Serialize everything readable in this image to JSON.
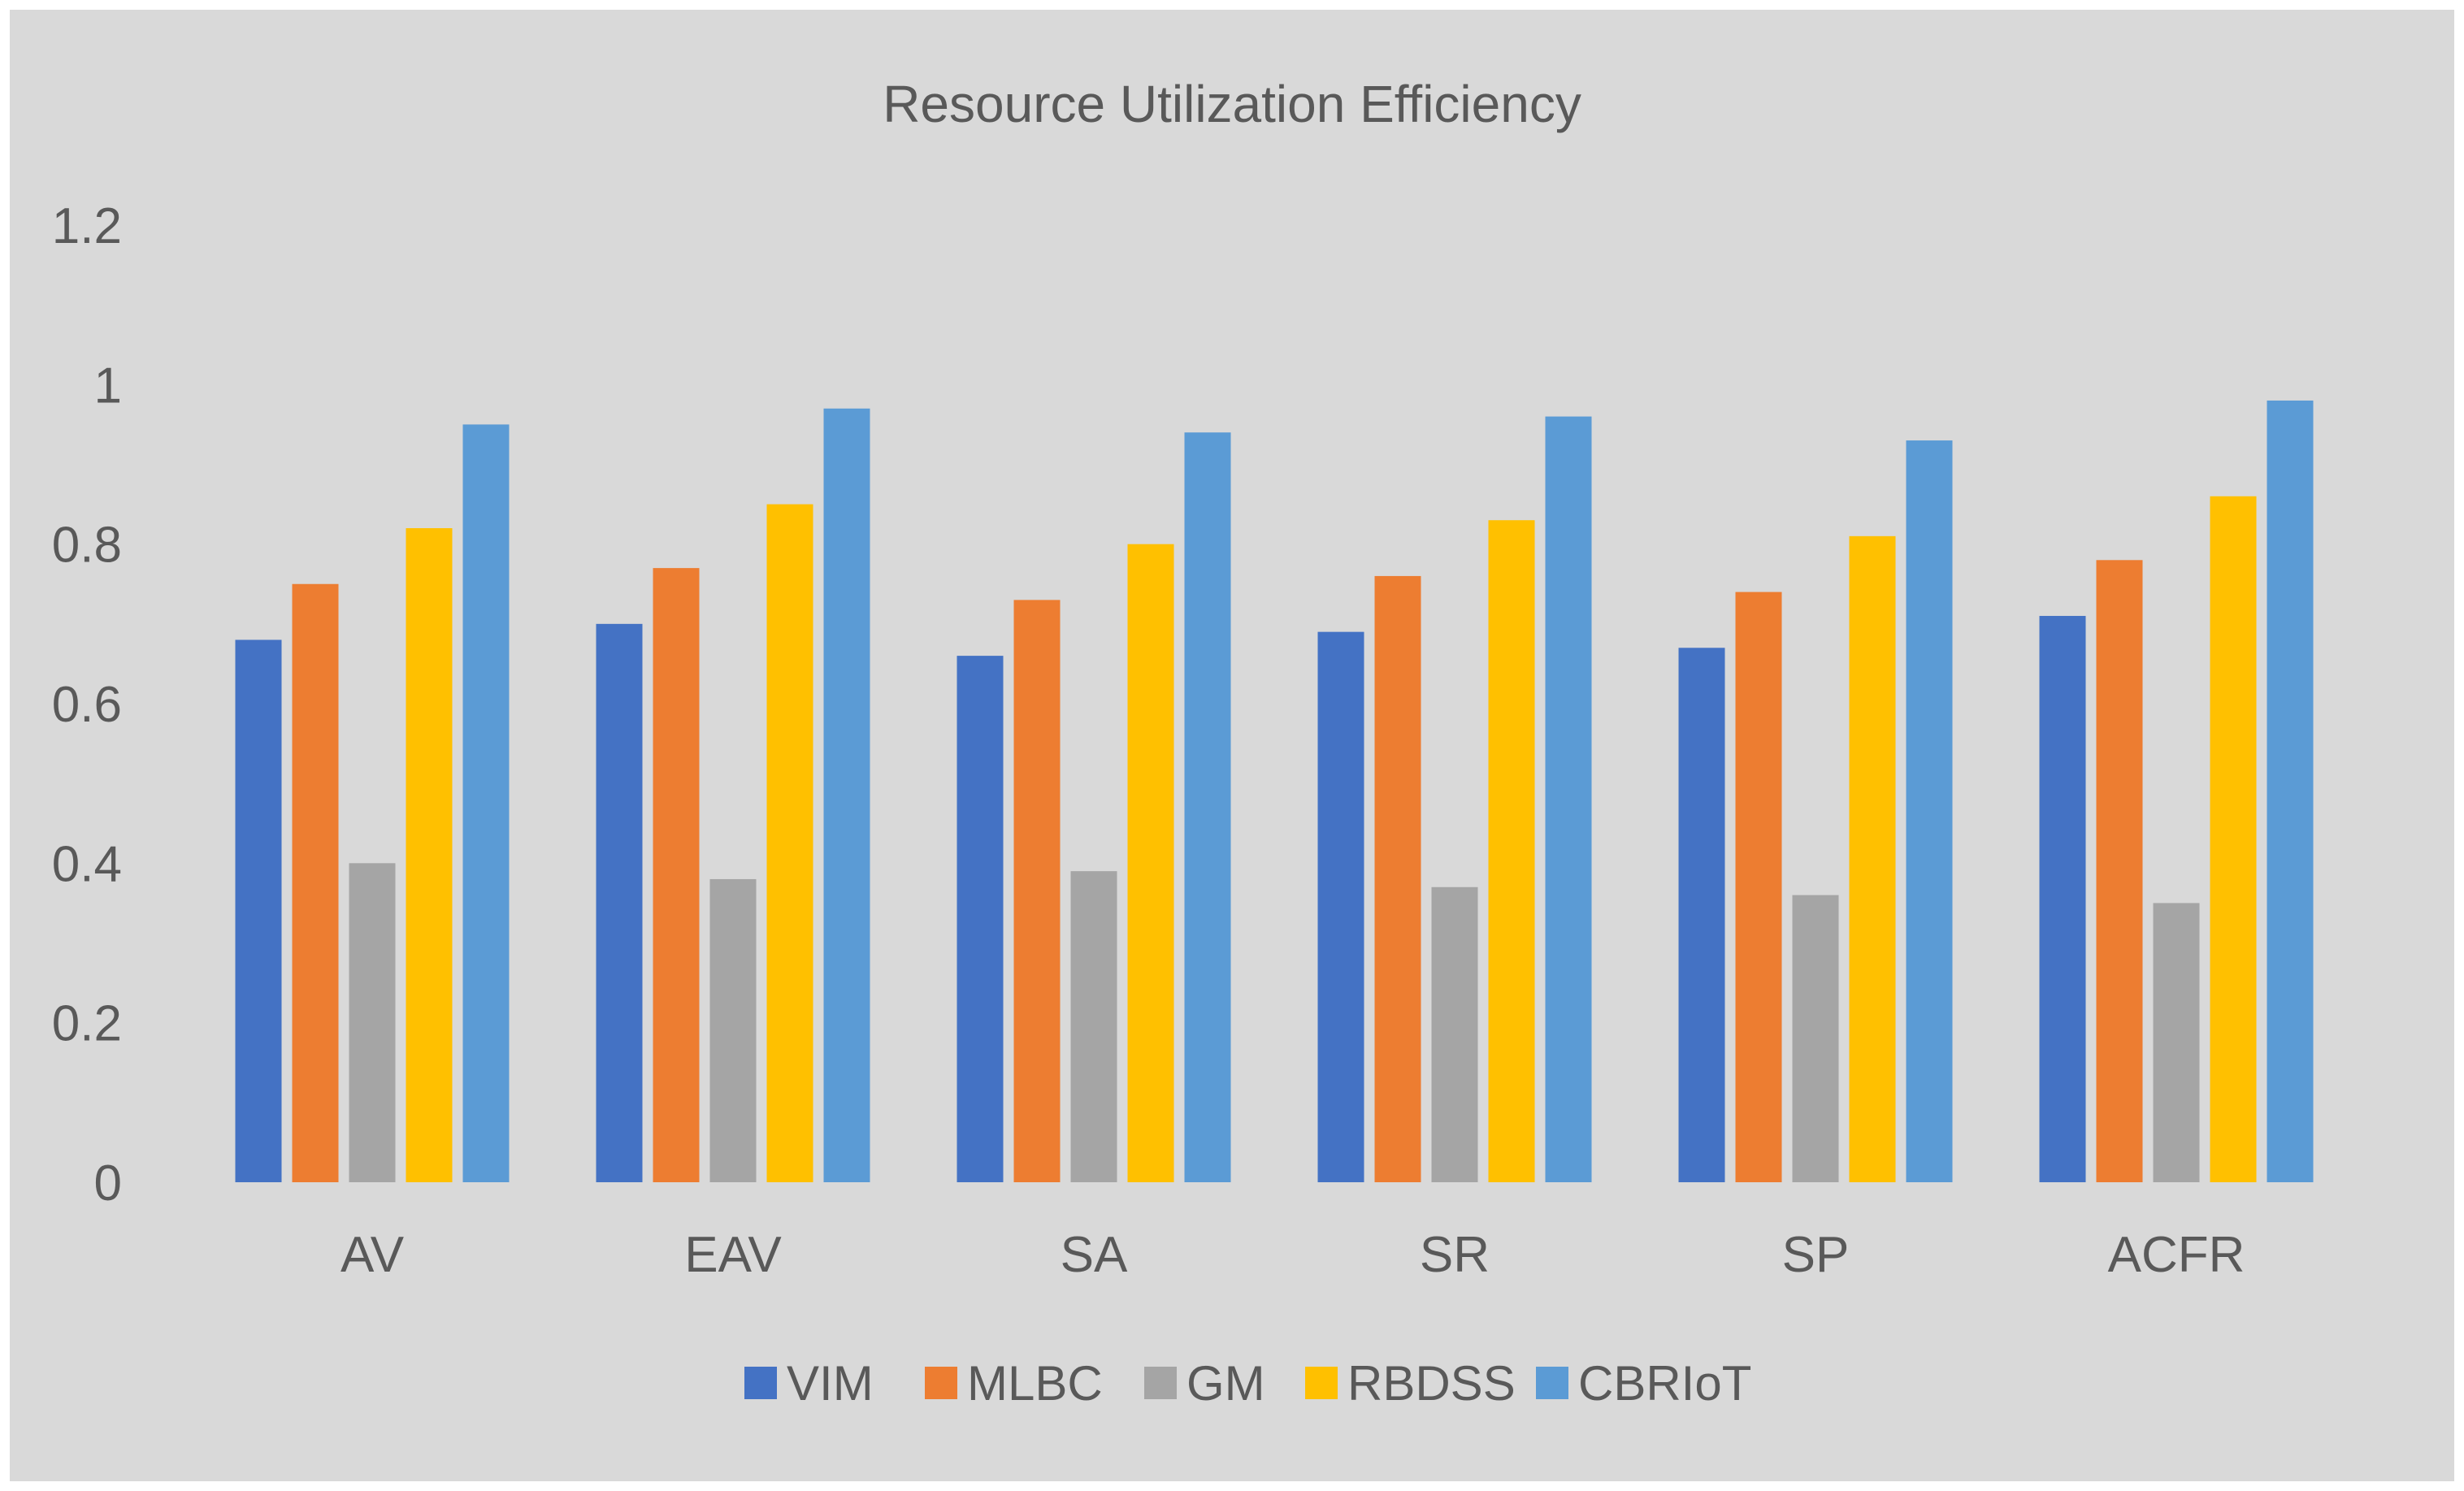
{
  "chart_data": {
    "type": "bar",
    "title": "Resource Utilization Efficiency",
    "xlabel": "",
    "ylabel": "",
    "ylim": [
      0,
      1.2
    ],
    "yticks": [
      "0",
      "0.2",
      "0.4",
      "0.6",
      "0.8",
      "1",
      "1.2"
    ],
    "ytick_values": [
      0,
      0.2,
      0.4,
      0.6,
      0.8,
      1.0,
      1.2
    ],
    "grid": false,
    "legend_position": "bottom",
    "categories": [
      "AV",
      "EAV",
      "SA",
      "SR",
      "SP",
      "ACFR"
    ],
    "series": [
      {
        "name": "VIM",
        "color": "#4472C4",
        "values": [
          0.68,
          0.7,
          0.66,
          0.69,
          0.67,
          0.71
        ]
      },
      {
        "name": "MLBC",
        "color": "#ED7D31",
        "values": [
          0.75,
          0.77,
          0.73,
          0.76,
          0.74,
          0.78
        ]
      },
      {
        "name": "GM",
        "color": "#A5A5A5",
        "values": [
          0.4,
          0.38,
          0.39,
          0.37,
          0.36,
          0.35
        ]
      },
      {
        "name": "RBDSS",
        "color": "#FFC000",
        "values": [
          0.82,
          0.85,
          0.8,
          0.83,
          0.81,
          0.86
        ]
      },
      {
        "name": "CBRIoT",
        "color": "#5B9BD5",
        "values": [
          0.95,
          0.97,
          0.94,
          0.96,
          0.93,
          0.98
        ]
      }
    ]
  },
  "colors": {
    "plot_background": "#D9D9D9",
    "text": "#595959"
  }
}
